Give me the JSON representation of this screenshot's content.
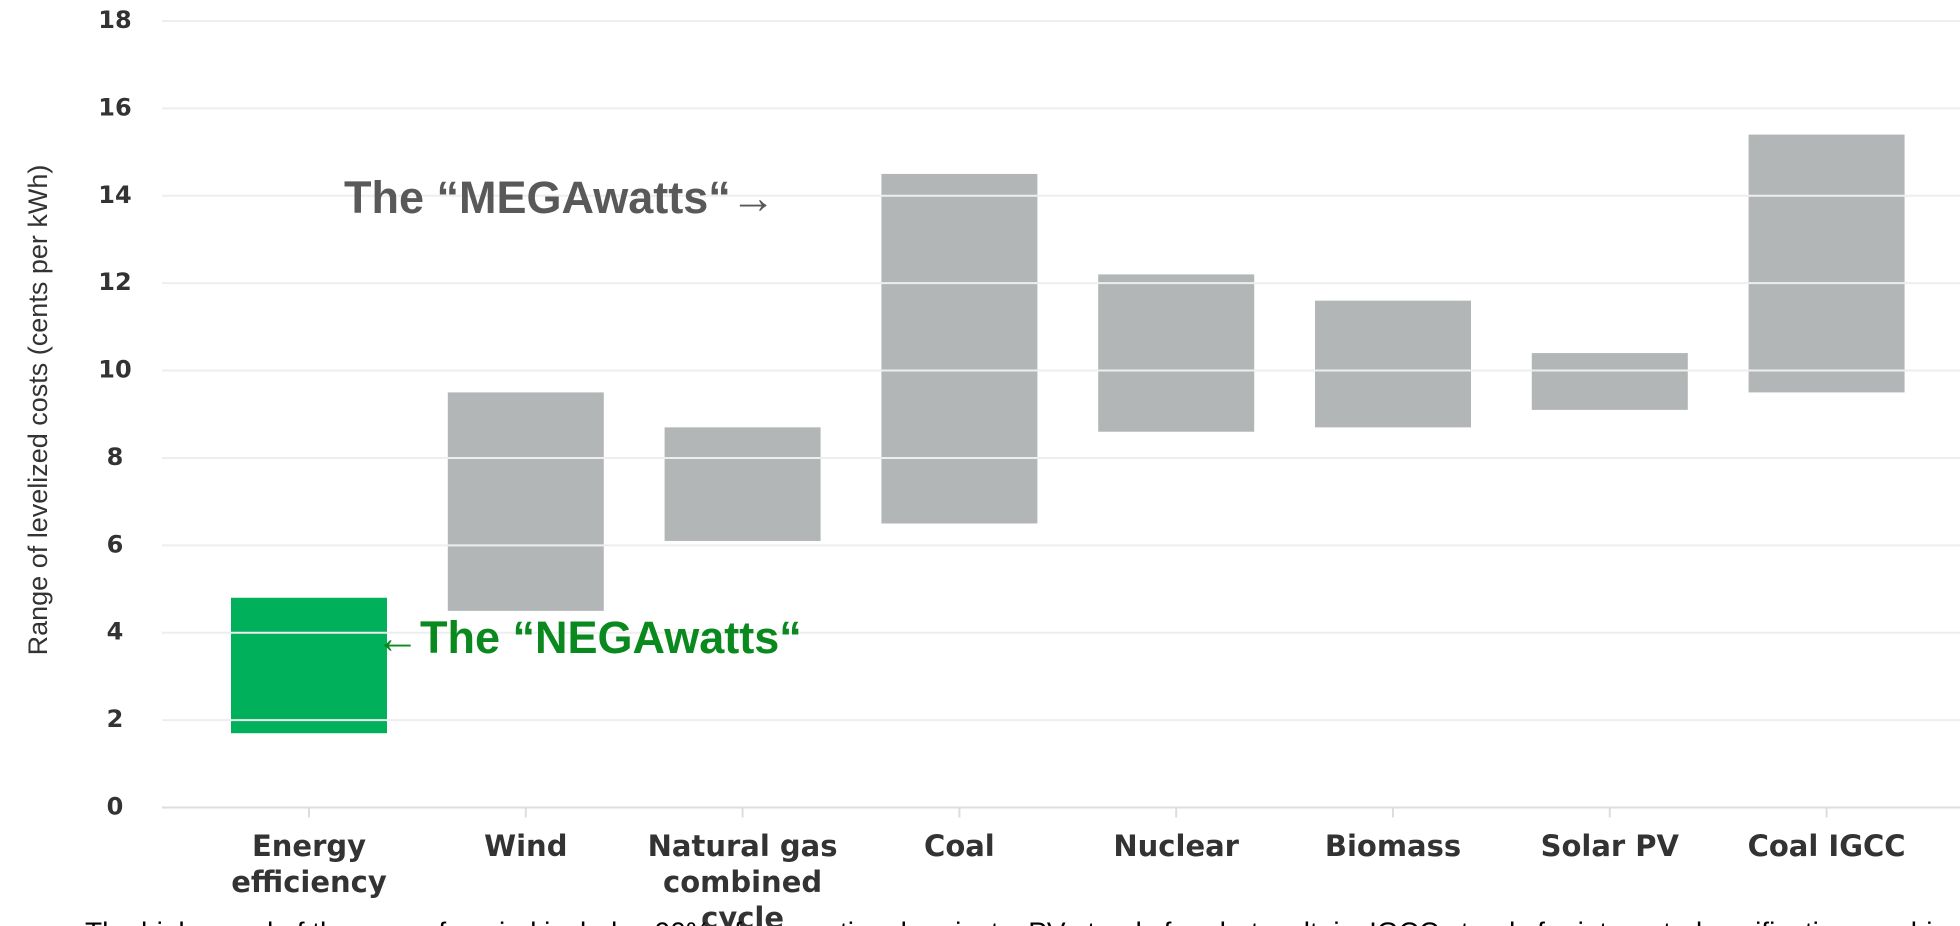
{
  "chart_data": {
    "type": "range_bar",
    "ylabel": "Range of levelized costs (cents per kWh)",
    "categories": [
      "Energy efficiency",
      "Wind",
      "Natural gas combined cycle",
      "Coal",
      "Nuclear",
      "Biomass",
      "Solar PV",
      "Coal IGCC"
    ],
    "low": [
      1.7,
      4.5,
      6.1,
      6.5,
      8.6,
      8.7,
      9.1,
      9.5
    ],
    "high": [
      4.8,
      9.5,
      8.7,
      14.5,
      12.2,
      11.6,
      10.4,
      15.4
    ],
    "colors": [
      "#00b05a",
      "#b3b6b7",
      "#b3b6b7",
      "#b3b6b7",
      "#b3b6b7",
      "#b3b6b7",
      "#b3b6b7",
      "#b3b6b7"
    ],
    "ylim": [
      0,
      18
    ],
    "yticks": [
      0,
      2,
      4,
      6,
      8,
      10,
      12,
      14,
      16,
      18
    ],
    "grid": true,
    "annotations": [
      {
        "text": "The “MEGAwatts“→",
        "color": "#595959"
      },
      {
        "text": "←The “NEGAwatts“",
        "color": "#0a8a1e"
      }
    ],
    "caption": "The higher end of the range for wind includes 90% of conventional projects; PV stands for photovoltaic; IGCC stands for integrated gasification combined cycle"
  }
}
